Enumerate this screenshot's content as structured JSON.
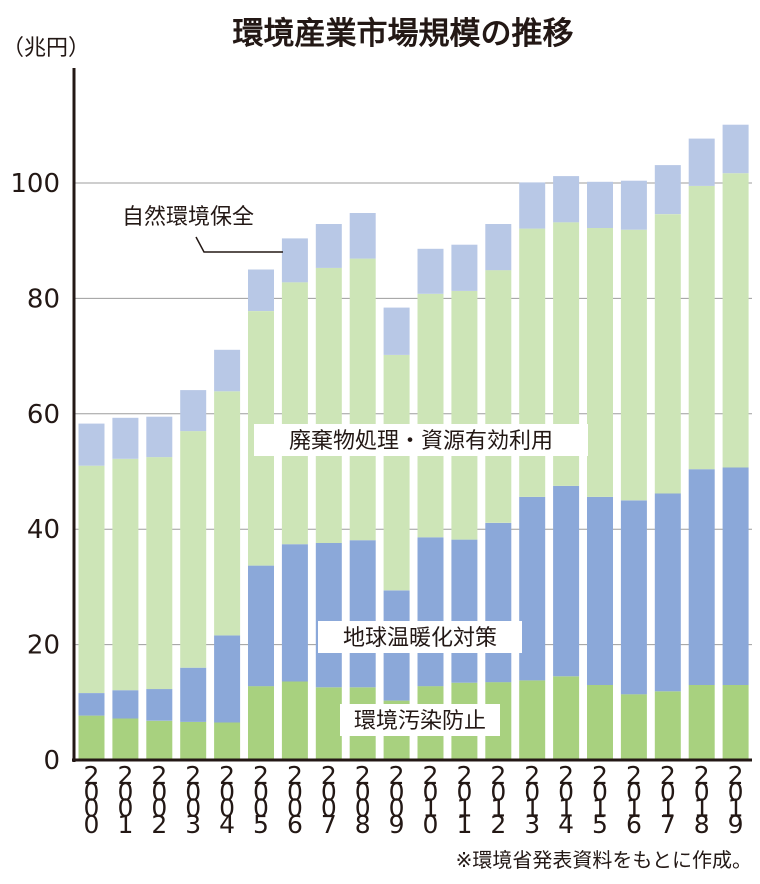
{
  "chart_data": {
    "type": "bar",
    "stacked": true,
    "title": "環境産業市場規模の推移",
    "unit_label": "（兆円）",
    "ylim": [
      0,
      115
    ],
    "yticks": [
      0,
      20,
      40,
      60,
      80,
      100
    ],
    "grid": true,
    "categories": [
      "2000",
      "2001",
      "2002",
      "2003",
      "2004",
      "2005",
      "2006",
      "2007",
      "2008",
      "2009",
      "2010",
      "2011",
      "2012",
      "2013",
      "2014",
      "2015",
      "2016",
      "2017",
      "2018",
      "2019"
    ],
    "series": [
      {
        "name": "環境汚染防止",
        "color": "#a8d17f",
        "values": [
          7.7,
          7.2,
          6.8,
          6.6,
          6.5,
          12.8,
          13.6,
          12.6,
          12.6,
          10.3,
          12.8,
          13.4,
          13.5,
          13.8,
          14.5,
          13.0,
          11.4,
          11.9,
          13.0,
          13.0
        ]
      },
      {
        "name": "地球温暖化対策",
        "color": "#8ba8d9",
        "values": [
          3.9,
          4.9,
          5.5,
          9.4,
          15.1,
          20.9,
          23.8,
          25.0,
          25.5,
          19.1,
          25.8,
          24.8,
          27.6,
          31.8,
          33.0,
          32.6,
          33.6,
          34.3,
          37.4,
          37.7
        ]
      },
      {
        "name": "廃棄物処理・資源有効利用",
        "color": "#cde5b7",
        "values": [
          39.4,
          40.1,
          40.2,
          41.0,
          42.3,
          44.1,
          45.4,
          47.7,
          48.8,
          40.8,
          42.2,
          43.1,
          43.8,
          46.5,
          45.7,
          46.6,
          46.9,
          48.4,
          49.1,
          51.0
        ]
      },
      {
        "name": "自然環境保全",
        "color": "#b8c8e6",
        "values": [
          7.3,
          7.1,
          7.0,
          7.1,
          7.2,
          7.2,
          7.6,
          7.6,
          7.9,
          8.2,
          7.8,
          8.0,
          8.0,
          8.0,
          8.0,
          8.0,
          8.5,
          8.5,
          8.2,
          8.4
        ]
      }
    ],
    "source_note": "※環境省発表資料をもとに作成。"
  }
}
